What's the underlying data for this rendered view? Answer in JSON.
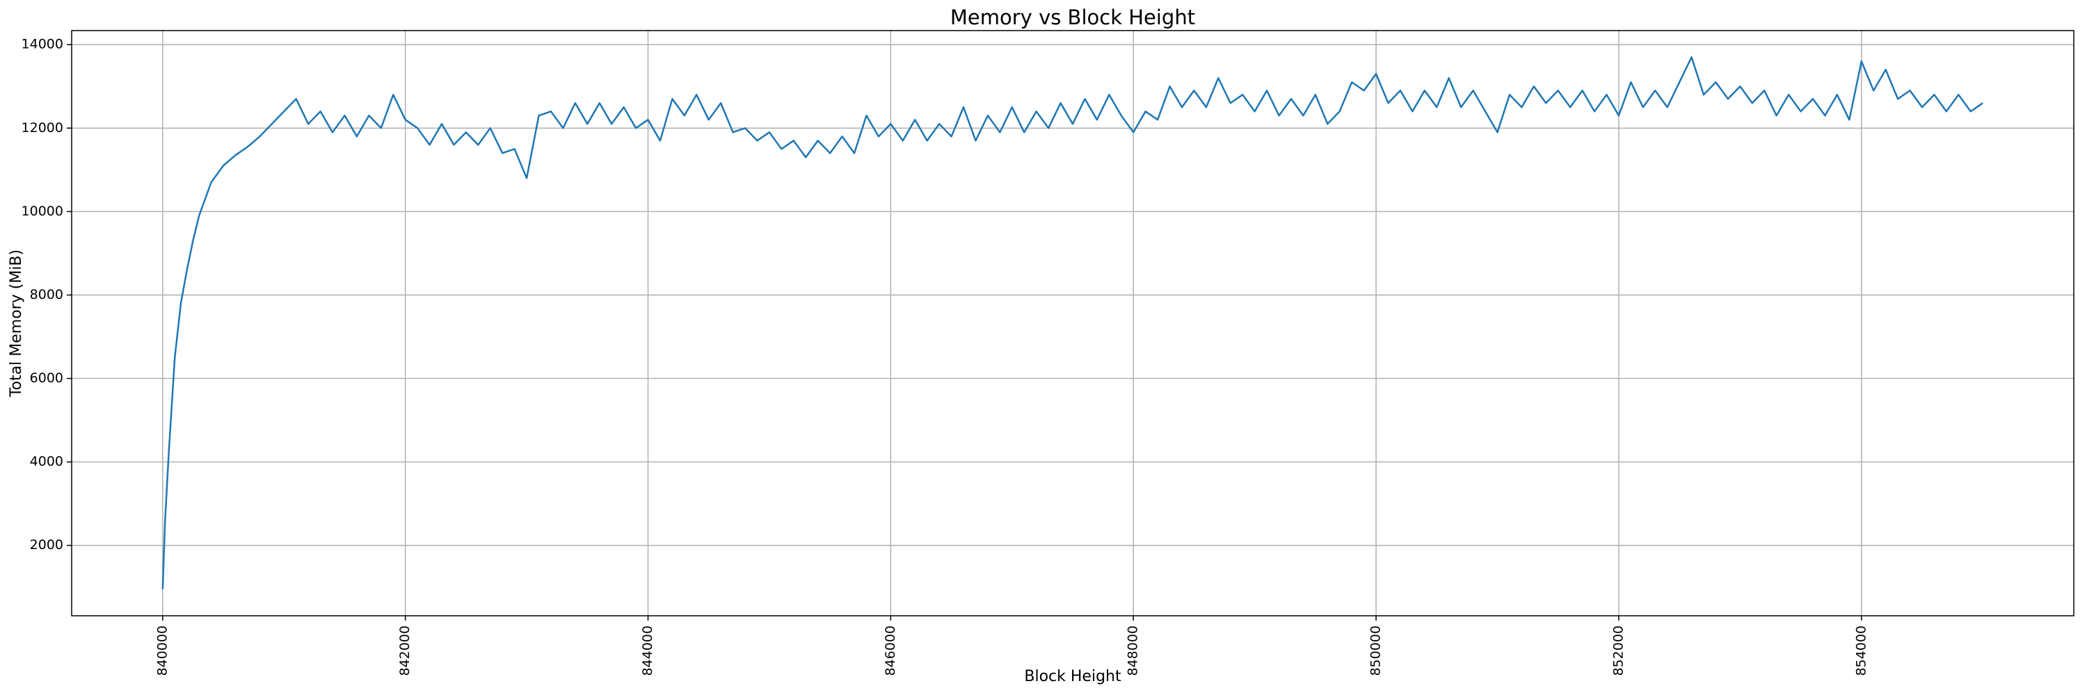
{
  "chart_data": {
    "type": "line",
    "title": "Memory vs Block Height",
    "xlabel": "Block Height",
    "ylabel": "Total Memory (MiB)",
    "xlim": [
      839250,
      855750
    ],
    "ylim": [
      313,
      14337
    ],
    "xticks": [
      840000,
      842000,
      844000,
      846000,
      848000,
      850000,
      852000,
      854000
    ],
    "yticks": [
      2000,
      4000,
      6000,
      8000,
      10000,
      12000,
      14000
    ],
    "grid": true,
    "series": [
      {
        "name": "Total Memory",
        "color": "#1f77b4",
        "x": [
          840000,
          840020,
          840050,
          840100,
          840150,
          840200,
          840250,
          840300,
          840350,
          840400,
          840500,
          840600,
          840700,
          840800,
          840900,
          841000,
          841100,
          841200,
          841300,
          841400,
          841500,
          841600,
          841700,
          841800,
          841900,
          842000,
          842100,
          842200,
          842300,
          842400,
          842500,
          842600,
          842700,
          842800,
          842900,
          843000,
          843100,
          843200,
          843300,
          843400,
          843500,
          843600,
          843700,
          843800,
          843900,
          844000,
          844100,
          844200,
          844300,
          844400,
          844500,
          844600,
          844700,
          844800,
          844900,
          845000,
          845100,
          845200,
          845300,
          845400,
          845500,
          845600,
          845700,
          845800,
          845900,
          846000,
          846100,
          846200,
          846300,
          846400,
          846500,
          846600,
          846700,
          846800,
          846900,
          847000,
          847100,
          847200,
          847300,
          847400,
          847500,
          847600,
          847700,
          847800,
          847900,
          848000,
          848100,
          848200,
          848300,
          848400,
          848500,
          848600,
          848700,
          848800,
          848900,
          849000,
          849100,
          849200,
          849300,
          849400,
          849500,
          849600,
          849700,
          849800,
          849900,
          850000,
          850100,
          850200,
          850300,
          850400,
          850500,
          850600,
          850700,
          850800,
          850900,
          851000,
          851100,
          851200,
          851300,
          851400,
          851500,
          851600,
          851700,
          851800,
          851900,
          852000,
          852100,
          852200,
          852300,
          852400,
          852500,
          852600,
          852700,
          852800,
          852900,
          853000,
          853100,
          853200,
          853300,
          853400,
          853500,
          853600,
          853700,
          853800,
          853900,
          854000,
          854100,
          854200,
          854300,
          854400,
          854500,
          854600,
          854700,
          854800,
          854900,
          855000
        ],
        "values": [
          950,
          2600,
          4200,
          6500,
          7800,
          8600,
          9300,
          9900,
          10300,
          10700,
          11100,
          11350,
          11550,
          11800,
          12100,
          12400,
          12700,
          12100,
          12400,
          11900,
          12300,
          11800,
          12300,
          12000,
          12800,
          12200,
          12000,
          11600,
          12100,
          11600,
          11900,
          11600,
          12000,
          11400,
          11500,
          10800,
          12300,
          12400,
          12000,
          12600,
          12100,
          12600,
          12100,
          12500,
          12000,
          12200,
          11700,
          12700,
          12300,
          12800,
          12200,
          12600,
          11900,
          12000,
          11700,
          11900,
          11500,
          11700,
          11300,
          11700,
          11400,
          11800,
          11400,
          12300,
          11800,
          12100,
          11700,
          12200,
          11700,
          12100,
          11800,
          12500,
          11700,
          12300,
          11900,
          12500,
          11900,
          12400,
          12000,
          12600,
          12100,
          12700,
          12200,
          12800,
          12300,
          11900,
          12400,
          12200,
          13000,
          12500,
          12900,
          12500,
          13200,
          12600,
          12800,
          12400,
          12900,
          12300,
          12700,
          12300,
          12800,
          12100,
          12400,
          13100,
          12900,
          13300,
          12600,
          12900,
          12400,
          12900,
          12500,
          13200,
          12500,
          12900,
          12400,
          11900,
          12800,
          12500,
          13000,
          12600,
          12900,
          12500,
          12900,
          12400,
          12800,
          12300,
          13100,
          12500,
          12900,
          12500,
          13100,
          13700,
          12800,
          13100,
          12700,
          13000,
          12600,
          12900,
          12300,
          12800,
          12400,
          12700,
          12300,
          12800,
          12200,
          13600,
          12900,
          13400,
          12700,
          12900,
          12500,
          12800,
          12400,
          12800,
          12400,
          12600
        ]
      }
    ]
  }
}
